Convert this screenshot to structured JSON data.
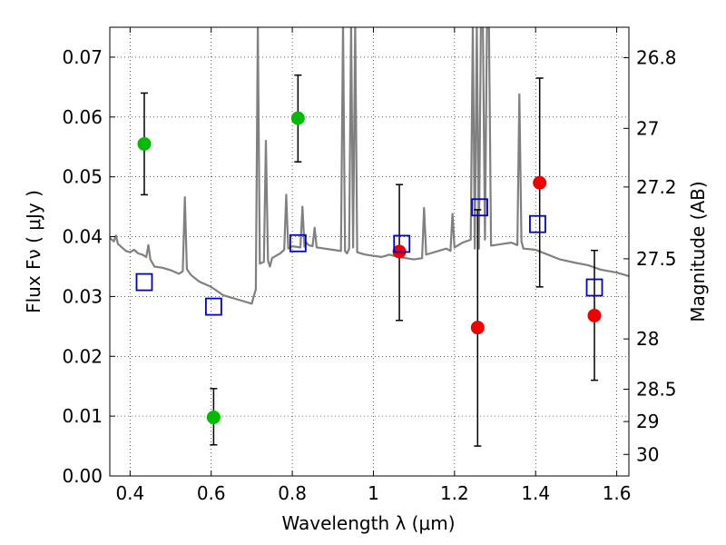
{
  "chart_data": {
    "type": "scatter",
    "xlabel": "Wavelength  λ (μm)",
    "ylabel": "Flux  Fν  ( μJy )",
    "y2label": "Magnitude (AB)",
    "xlim": [
      0.35,
      1.63
    ],
    "ylim": [
      0.0,
      0.075
    ],
    "grid": true,
    "x_ticks": [
      0.4,
      0.6,
      0.8,
      1.0,
      1.2,
      1.4,
      1.6
    ],
    "x_tick_labels": [
      "0.4",
      "0.6",
      "0.8",
      "1",
      "1.2",
      "1.4",
      "1.6"
    ],
    "y_ticks": [
      0.0,
      0.01,
      0.02,
      0.03,
      0.04,
      0.05,
      0.06,
      0.07
    ],
    "y_tick_labels": [
      "0.00",
      "0.01",
      "0.02",
      "0.03",
      "0.04",
      "0.05",
      "0.06",
      "0.07"
    ],
    "y2_ticks": [
      {
        "flux": 0.0699,
        "label": "26.8"
      },
      {
        "flux": 0.0581,
        "label": "27"
      },
      {
        "flux": 0.0483,
        "label": "27.2"
      },
      {
        "flux": 0.0363,
        "label": "27.5"
      },
      {
        "flux": 0.0229,
        "label": "28"
      },
      {
        "flux": 0.0145,
        "label": "28.5"
      },
      {
        "flux": 0.0091,
        "label": "29"
      },
      {
        "flux": 0.0036,
        "label": "30"
      }
    ],
    "series": [
      {
        "marker": "circle",
        "color": "#00bb00",
        "points": [
          {
            "x": 0.435,
            "y": 0.0555,
            "err_low": 0.047,
            "err_high": 0.064
          },
          {
            "x": 0.606,
            "y": 0.0098,
            "err_low": 0.0052,
            "err_high": 0.0146
          },
          {
            "x": 0.814,
            "y": 0.0598,
            "err_low": 0.0525,
            "err_high": 0.067
          }
        ]
      },
      {
        "marker": "circle",
        "color": "#ee0000",
        "points": [
          {
            "x": 1.064,
            "y": 0.0375,
            "err_low": 0.026,
            "err_high": 0.0487
          },
          {
            "x": 1.257,
            "y": 0.0248,
            "err_low": 0.005,
            "err_high": 0.0445
          },
          {
            "x": 1.41,
            "y": 0.049,
            "err_low": 0.0316,
            "err_high": 0.0665
          },
          {
            "x": 1.545,
            "y": 0.0268,
            "err_low": 0.016,
            "err_high": 0.0377
          }
        ]
      },
      {
        "marker": "open-square",
        "color": "#0000cc",
        "points": [
          {
            "x": 0.435,
            "y": 0.0324
          },
          {
            "x": 0.606,
            "y": 0.0283
          },
          {
            "x": 0.814,
            "y": 0.0389
          },
          {
            "x": 1.07,
            "y": 0.0388
          },
          {
            "x": 1.262,
            "y": 0.0449
          },
          {
            "x": 1.405,
            "y": 0.0421
          },
          {
            "x": 1.545,
            "y": 0.0315
          }
        ]
      }
    ],
    "model_spectrum": {
      "color": "#808080",
      "x": [
        0.35,
        0.36,
        0.365,
        0.37,
        0.38,
        0.39,
        0.4,
        0.41,
        0.42,
        0.43,
        0.44,
        0.445,
        0.45,
        0.46,
        0.48,
        0.5,
        0.52,
        0.53,
        0.535,
        0.54,
        0.55,
        0.57,
        0.6,
        0.63,
        0.66,
        0.69,
        0.7,
        0.705,
        0.71,
        0.715,
        0.72,
        0.73,
        0.735,
        0.74,
        0.745,
        0.75,
        0.76,
        0.77,
        0.78,
        0.785,
        0.79,
        0.8,
        0.82,
        0.825,
        0.83,
        0.835,
        0.84,
        0.85,
        0.855,
        0.86,
        0.88,
        0.9,
        0.92,
        0.925,
        0.93,
        0.935,
        0.94,
        0.945,
        0.95,
        0.955,
        0.96,
        0.98,
        1.0,
        1.02,
        1.04,
        1.06,
        1.08,
        1.1,
        1.12,
        1.125,
        1.13,
        1.14,
        1.16,
        1.18,
        1.19,
        1.195,
        1.2,
        1.22,
        1.24,
        1.245,
        1.25,
        1.255,
        1.26,
        1.265,
        1.27,
        1.275,
        1.28,
        1.285,
        1.29,
        1.3,
        1.32,
        1.34,
        1.355,
        1.36,
        1.365,
        1.37,
        1.4,
        1.43,
        1.46,
        1.5,
        1.53,
        1.56,
        1.6,
        1.63
      ],
      "y": [
        0.0398,
        0.0392,
        0.0402,
        0.0388,
        0.0382,
        0.0376,
        0.0374,
        0.0378,
        0.0372,
        0.037,
        0.0366,
        0.0386,
        0.0362,
        0.035,
        0.0348,
        0.0344,
        0.0338,
        0.0342,
        0.0466,
        0.0346,
        0.0336,
        0.0325,
        0.0316,
        0.0302,
        0.0296,
        0.029,
        0.0288,
        0.03,
        0.0312,
        0.0755,
        0.0355,
        0.0358,
        0.056,
        0.036,
        0.035,
        0.0364,
        0.0368,
        0.0372,
        0.0378,
        0.047,
        0.038,
        0.0384,
        0.0382,
        0.045,
        0.0383,
        0.039,
        0.0386,
        0.0384,
        0.0415,
        0.0382,
        0.038,
        0.0378,
        0.0376,
        0.0755,
        0.0376,
        0.0372,
        0.038,
        0.0755,
        0.0382,
        0.0755,
        0.0374,
        0.037,
        0.0368,
        0.0366,
        0.037,
        0.0366,
        0.0364,
        0.0362,
        0.0364,
        0.0448,
        0.037,
        0.0372,
        0.0376,
        0.038,
        0.0376,
        0.0438,
        0.0382,
        0.039,
        0.0395,
        0.0755,
        0.038,
        0.0755,
        0.038,
        0.0755,
        0.0755,
        0.0395,
        0.0755,
        0.0755,
        0.0385,
        0.0386,
        0.0388,
        0.039,
        0.0386,
        0.0638,
        0.0392,
        0.038,
        0.0378,
        0.037,
        0.0362,
        0.0356,
        0.0352,
        0.0345,
        0.034,
        0.0334
      ]
    }
  }
}
